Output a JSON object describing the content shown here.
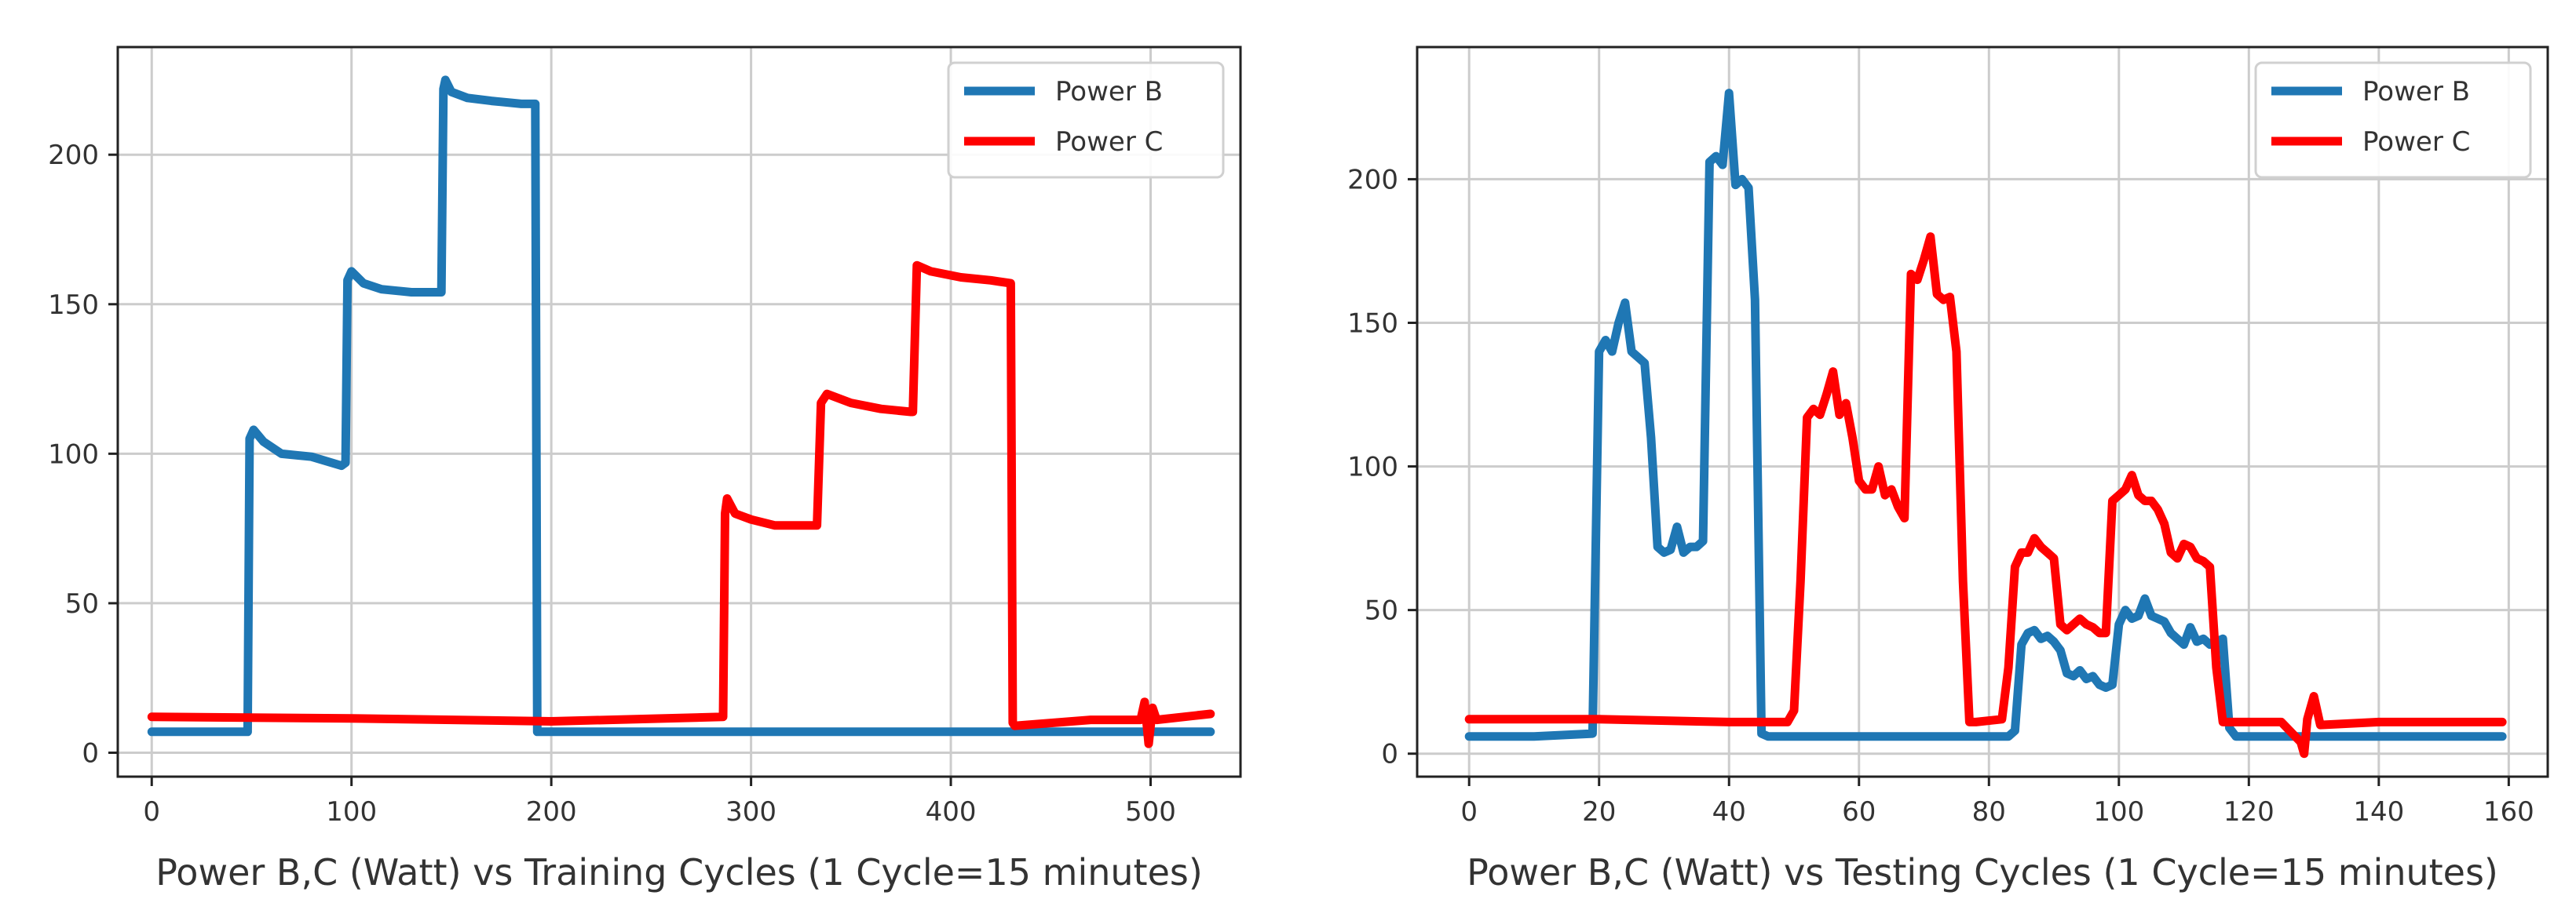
{
  "chart_data": [
    {
      "type": "line",
      "title": "",
      "xlabel": "Power B,C (Watt) vs Training Cycles (1 Cycle=15 minutes)",
      "ylabel": "",
      "xlim": [
        -17,
        545
      ],
      "ylim": [
        -8,
        236
      ],
      "xticks": [
        0,
        100,
        200,
        300,
        400,
        500
      ],
      "yticks": [
        0,
        50,
        100,
        150,
        200
      ],
      "grid": true,
      "legend_position": "top-right",
      "series": [
        {
          "name": "Power B",
          "color": "#1f77b4",
          "x": [
            0,
            48,
            49,
            51,
            56,
            65,
            80,
            95,
            97,
            98,
            100,
            106,
            115,
            130,
            145,
            146,
            147,
            150,
            158,
            170,
            185,
            192,
            193,
            195,
            300,
            400,
            500,
            530
          ],
          "y": [
            7,
            7,
            105,
            108,
            104,
            100,
            99,
            96,
            97,
            158,
            161,
            157,
            155,
            154,
            154,
            222,
            225,
            221,
            219,
            218,
            217,
            217,
            7,
            7,
            7,
            7,
            7,
            7
          ]
        },
        {
          "name": "Power C",
          "color": "#ff0000",
          "x": [
            0,
            100,
            200,
            286,
            287,
            288,
            292,
            300,
            312,
            330,
            333,
            335,
            338,
            350,
            365,
            380,
            381,
            383,
            390,
            405,
            420,
            430,
            431,
            432,
            470,
            495,
            497,
            499,
            501,
            503,
            530
          ],
          "y": [
            12,
            11.5,
            10.5,
            12,
            80,
            85,
            80,
            78,
            76,
            76,
            76,
            117,
            120,
            117,
            115,
            114,
            114,
            163,
            161,
            159,
            158,
            157,
            10,
            9,
            11,
            11,
            17,
            3,
            15,
            11,
            13
          ]
        }
      ]
    },
    {
      "type": "line",
      "title": "",
      "xlabel": "Power B,C (Watt) vs Testing Cycles (1 Cycle=15 minutes)",
      "ylabel": "",
      "xlim": [
        -8,
        166
      ],
      "ylim": [
        -8,
        246
      ],
      "xticks": [
        0,
        20,
        40,
        60,
        80,
        100,
        120,
        140,
        160
      ],
      "yticks": [
        0,
        50,
        100,
        150,
        200
      ],
      "grid": true,
      "legend_position": "top-right",
      "series": [
        {
          "name": "Power B",
          "color": "#1f77b4",
          "x": [
            0,
            10,
            19,
            20,
            21,
            22,
            23,
            24,
            25,
            26,
            27,
            28,
            29,
            30,
            31,
            32,
            33,
            34,
            35,
            36,
            37,
            38,
            39,
            40,
            41,
            42,
            43,
            44,
            45,
            46,
            60,
            80,
            83,
            84,
            85,
            86,
            87,
            88,
            89,
            90,
            91,
            92,
            93,
            94,
            95,
            96,
            97,
            98,
            99,
            100,
            101,
            102,
            103,
            104,
            105,
            106,
            107,
            108,
            109,
            110,
            111,
            112,
            113,
            114,
            115,
            116,
            117,
            118,
            130,
            140,
            159
          ],
          "y": [
            6,
            6,
            7,
            140,
            144,
            140,
            150,
            157,
            140,
            138,
            136,
            110,
            72,
            70,
            71,
            79,
            70,
            72,
            72,
            74,
            206,
            208,
            205,
            230,
            198,
            200,
            197,
            158,
            7,
            6,
            6,
            6,
            6,
            8,
            38,
            42,
            43,
            40,
            41,
            39,
            36,
            28,
            27,
            29,
            26,
            27,
            24,
            23,
            24,
            45,
            50,
            47,
            48,
            54,
            48,
            47,
            46,
            42,
            40,
            38,
            44,
            39,
            40,
            38,
            39,
            40,
            9,
            6,
            6,
            6,
            6
          ]
        },
        {
          "name": "Power C",
          "color": "#ff0000",
          "x": [
            0,
            20,
            40,
            49,
            50,
            51,
            52,
            53,
            54,
            55,
            56,
            57,
            58,
            59,
            60,
            61,
            62,
            63,
            64,
            65,
            66,
            67,
            68,
            69,
            70,
            71,
            72,
            73,
            74,
            75,
            76,
            77,
            78,
            82,
            83,
            84,
            85,
            86,
            87,
            88,
            89,
            90,
            91,
            92,
            93,
            94,
            95,
            96,
            97,
            98,
            99,
            100,
            101,
            102,
            103,
            104,
            105,
            106,
            107,
            108,
            109,
            110,
            111,
            112,
            113,
            114,
            115,
            116,
            117,
            120,
            125,
            128,
            128.5,
            129,
            130,
            131,
            140,
            159
          ],
          "y": [
            12,
            12,
            11,
            11,
            15,
            60,
            117,
            120,
            118,
            125,
            133,
            118,
            122,
            110,
            95,
            92,
            92,
            100,
            90,
            92,
            86,
            82,
            167,
            165,
            172,
            180,
            160,
            158,
            159,
            140,
            60,
            11,
            11,
            12,
            30,
            65,
            70,
            70,
            75,
            72,
            70,
            68,
            45,
            43,
            45,
            47,
            45,
            44,
            42,
            42,
            88,
            90,
            92,
            97,
            90,
            88,
            88,
            85,
            80,
            70,
            68,
            73,
            72,
            68,
            67,
            65,
            30,
            11,
            11,
            11,
            11,
            4,
            0,
            12,
            20,
            10,
            11,
            11
          ]
        }
      ]
    }
  ]
}
